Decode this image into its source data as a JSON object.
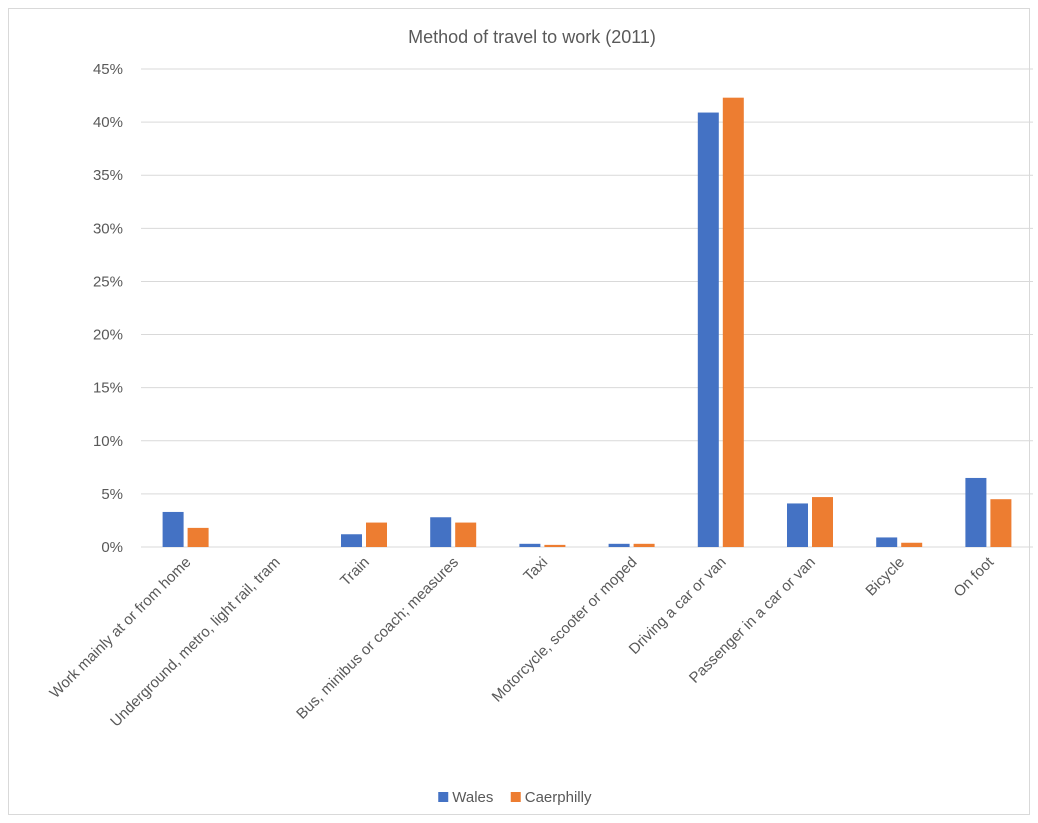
{
  "chart_data": {
    "type": "bar",
    "title": "Method of travel to work (2011)",
    "xlabel": "",
    "ylabel": "",
    "ylim": [
      0,
      45
    ],
    "y_tick_step": 5,
    "y_tick_format": "percent",
    "grid": true,
    "legend_position": "bottom",
    "categories": [
      "Work mainly at or from home",
      "Underground, metro, light rail, tram",
      "Train",
      "Bus, minibus or coach; measures",
      "Taxi",
      "Motorcycle, scooter or moped",
      "Driving a car or van",
      "Passenger in a car or van",
      "Bicycle",
      "On foot"
    ],
    "series": [
      {
        "name": "Wales",
        "color": "#4472C4",
        "values": [
          3.3,
          0.0,
          1.2,
          2.8,
          0.3,
          0.3,
          40.9,
          4.1,
          0.9,
          6.5
        ]
      },
      {
        "name": "Caerphilly",
        "color": "#ED7D31",
        "values": [
          1.8,
          0.0,
          2.3,
          2.3,
          0.2,
          0.3,
          42.3,
          4.7,
          0.4,
          4.5
        ]
      }
    ]
  }
}
